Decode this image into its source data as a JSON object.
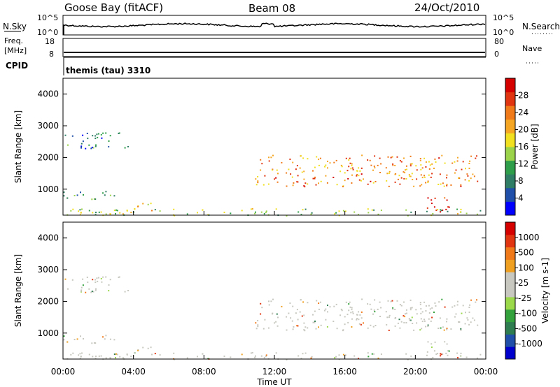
{
  "header": {
    "radar": "Goose Bay (fitACF)",
    "beam": "Beam 08",
    "date": "24/Oct/2010"
  },
  "top_panels": {
    "nsky_label": "N.Sky",
    "nsky_ticks": [
      "10^5",
      "10^0"
    ],
    "nsearch_label": "N.Search",
    "nsearch_ticks": [
      "10^5",
      "10^0"
    ],
    "freq_label": "Freq.",
    "freq_unit": "[MHz]",
    "freq_ticks": [
      "18",
      "8"
    ],
    "nave_label": "Nave",
    "nave_ticks": [
      "80",
      "0"
    ],
    "cpid_label": "CPID",
    "cpid_text": "themis (tau) 3310"
  },
  "chart_data": [
    {
      "type": "heatmap",
      "name": "power-panel",
      "ylabel": "Slant Range [km]",
      "yticks": [
        "4000",
        "3000",
        "2000",
        "1000"
      ],
      "ylim": [
        180,
        4500
      ],
      "colorbar_label": "Power [dB]",
      "colorbar_ticks": [
        "28",
        "24",
        "20",
        "16",
        "12",
        "8",
        "4"
      ],
      "colorbar_colors": [
        "#0000ff",
        "#1f4fa8",
        "#2e7d64",
        "#2f9e4a",
        "#9bd34a",
        "#f0e020",
        "#f5a623",
        "#f07a1a",
        "#e03510",
        "#d50000"
      ],
      "regions": [
        {
          "t": [
            0.0,
            3.8
          ],
          "r": [
            2300,
            2800
          ],
          "level": 6
        },
        {
          "t": [
            0.0,
            3.0
          ],
          "r": [
            700,
            1000
          ],
          "level": 8
        },
        {
          "t": [
            4.0,
            5.2
          ],
          "r": [
            300,
            600
          ],
          "level": 16
        },
        {
          "t": [
            10.8,
            23.5
          ],
          "r": [
            1100,
            2100
          ],
          "level": 20
        },
        {
          "t": [
            20.5,
            22.0
          ],
          "r": [
            300,
            800
          ],
          "level": 28
        },
        {
          "t": [
            0.0,
            24.0
          ],
          "r": [
            180,
            400
          ],
          "level": 12
        }
      ]
    },
    {
      "type": "heatmap",
      "name": "velocity-panel",
      "xlabel": "Time UT",
      "xticks": [
        "00:00",
        "04:00",
        "08:00",
        "12:00",
        "16:00",
        "20:00",
        "00:00"
      ],
      "ylabel": "Slant Range [km]",
      "yticks": [
        "4000",
        "3000",
        "2000",
        "1000"
      ],
      "ylim": [
        180,
        4500
      ],
      "colorbar_label": "Velocity [m s-1]",
      "colorbar_ticks": [
        "1000",
        "500",
        "100",
        "25",
        "-25",
        "-100",
        "-500",
        "-1000"
      ],
      "colorbar_colors": [
        "#0000cc",
        "#1f4fa8",
        "#2e7d50",
        "#33a23c",
        "#9bd84a",
        "#c8c8c0",
        "#c8c8c0",
        "#f0a020",
        "#f07a1a",
        "#e03510",
        "#d50000"
      ]
    }
  ]
}
